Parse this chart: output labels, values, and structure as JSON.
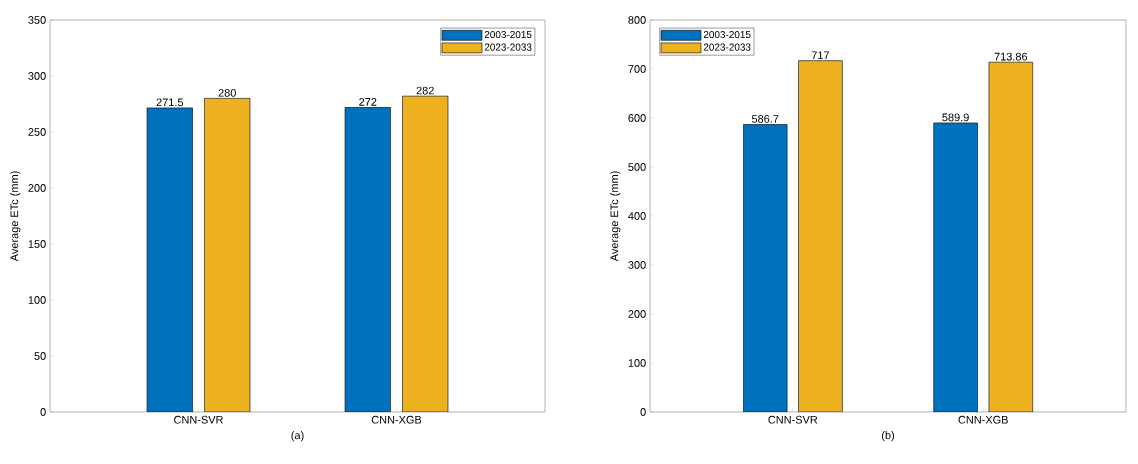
{
  "chart_data": [
    {
      "type": "bar",
      "xlabel": "(a)",
      "ylabel": "Average ETc (mm)",
      "categories": [
        "CNN-SVR",
        "CNN-XGB"
      ],
      "series": [
        {
          "name": "2003-2015",
          "color": "#0072bd",
          "values": [
            271.5,
            272
          ]
        },
        {
          "name": "2023-2033",
          "color": "#edb120",
          "values": [
            280,
            282
          ]
        }
      ],
      "ylim": [
        0,
        350
      ],
      "yticks": [
        0,
        50,
        100,
        150,
        200,
        250,
        300,
        350
      ],
      "data_labels": true,
      "legend": "top right",
      "grid": false
    },
    {
      "type": "bar",
      "xlabel": "(b)",
      "ylabel": "Average ETc (mm)",
      "categories": [
        "CNN-SVR",
        "CNN-XGB"
      ],
      "series": [
        {
          "name": "2003-2015",
          "color": "#0072bd",
          "values": [
            586.7,
            589.9
          ]
        },
        {
          "name": "2023-2033",
          "color": "#edb120",
          "values": [
            717,
            713.86
          ]
        }
      ],
      "ylim": [
        0,
        800
      ],
      "yticks": [
        0,
        100,
        200,
        300,
        400,
        500,
        600,
        700,
        800
      ],
      "data_labels": true,
      "legend": "top left",
      "grid": false
    }
  ]
}
